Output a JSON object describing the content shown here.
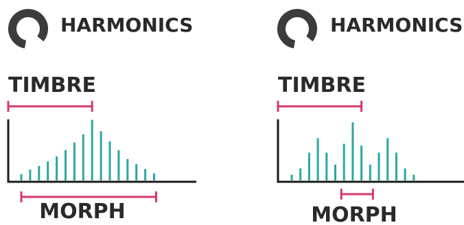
{
  "panels": [
    {
      "title": "HARMONICS",
      "timbre_label": "TIMBRE",
      "morph_label": "MORPH",
      "harmonics": [
        0.1,
        0.17,
        0.23,
        0.3,
        0.38,
        0.48,
        0.6,
        0.73,
        0.96,
        0.78,
        0.62,
        0.48,
        0.34,
        0.26,
        0.18,
        0.11
      ],
      "timbre_range": [
        0,
        8
      ],
      "morph_range": [
        0,
        15
      ]
    },
    {
      "title": "HARMONICS",
      "timbre_label": "TIMBRE",
      "morph_label": "MORPH",
      "harmonics": [
        0.09,
        0.19,
        0.44,
        0.67,
        0.44,
        0.25,
        0.58,
        0.92,
        0.55,
        0.25,
        0.44,
        0.67,
        0.44,
        0.19,
        0.09
      ],
      "timbre_range": [
        0,
        8
      ],
      "morph_range": [
        6,
        9
      ]
    }
  ],
  "colors": {
    "bar": "#2aa7a1",
    "bracket": "#d4386e",
    "axis": "#1a1a1a",
    "text": "#2a2a2a",
    "icon": "#3c3c3c"
  }
}
